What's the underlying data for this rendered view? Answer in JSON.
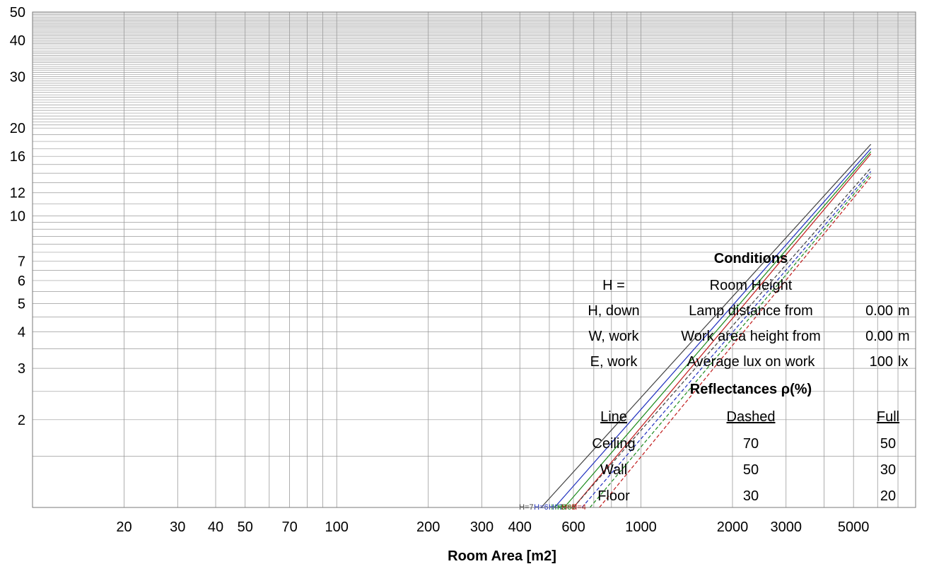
{
  "chart_data": {
    "type": "line",
    "title": "",
    "xlabel": "Room Area [m2]",
    "ylabel": "",
    "x_scale": "log",
    "y_scale": "log",
    "xlim": [
      10,
      8000
    ],
    "ylim": [
      1,
      50
    ],
    "x_ticks": [
      "20",
      "30",
      "40",
      "50",
      "70",
      "100",
      "200",
      "300",
      "400",
      "600",
      "1000",
      "2000",
      "3000",
      "5000"
    ],
    "y_ticks": [
      "2",
      "3",
      "4",
      "5",
      "6",
      "7",
      "10",
      "12",
      "16",
      "20",
      "30",
      "40",
      "50"
    ],
    "grid": true,
    "series": [
      {
        "name": "H=7",
        "style": "solid",
        "color": "#404040",
        "x": [
          470,
          5700
        ],
        "y": [
          1.0,
          17.6
        ]
      },
      {
        "name": "H=6",
        "style": "solid",
        "color": "#1f2fbf",
        "x": [
          520,
          5700
        ],
        "y": [
          1.0,
          17.0
        ]
      },
      {
        "name": "H=5",
        "style": "solid",
        "color": "#1a8a1a",
        "x": [
          560,
          5700
        ],
        "y": [
          1.0,
          16.6
        ]
      },
      {
        "name": "H=4",
        "style": "solid",
        "color": "#c01a1a",
        "x": [
          600,
          5700
        ],
        "y": [
          1.0,
          16.3
        ]
      },
      {
        "name": "H=7",
        "style": "dashed",
        "color": "#404040",
        "x": [
          600,
          5700
        ],
        "y": [
          1.0,
          14.6
        ]
      },
      {
        "name": "H=6",
        "style": "dashed",
        "color": "#1f2fbf",
        "x": [
          640,
          5700
        ],
        "y": [
          1.0,
          14.2
        ]
      },
      {
        "name": "H=5",
        "style": "dashed",
        "color": "#1a8a1a",
        "x": [
          680,
          5700
        ],
        "y": [
          1.0,
          13.9
        ]
      },
      {
        "name": "H=4",
        "style": "dashed",
        "color": "#c01a1a",
        "x": [
          730,
          5700
        ],
        "y": [
          1.0,
          13.6
        ]
      }
    ],
    "curve_labels": [
      {
        "text": "H=7",
        "color": "#404040",
        "x": 420
      },
      {
        "text": "H=6",
        "color": "#1f2fbf",
        "x": 470
      },
      {
        "text": "H=5",
        "color": "#1a8a1a",
        "x": 535
      },
      {
        "text": "H=4",
        "color": "#1a8a1a",
        "x": 575
      },
      {
        "text": "H=7",
        "color": "#1f2fbf",
        "x": 525
      },
      {
        "text": "H=6",
        "color": "#1a8a1a",
        "x": 560
      },
      {
        "text": "H=5",
        "color": "#c01a1a",
        "x": 580
      },
      {
        "text": "H=4",
        "color": "#c01a1a",
        "x": 625
      }
    ]
  },
  "conditions": {
    "heading": "Conditions",
    "rows": [
      {
        "symbol": "H =",
        "desc": "Room Height",
        "value": "",
        "unit": ""
      },
      {
        "symbol": "H, down",
        "desc": "Lamp distance from",
        "value": "0.00",
        "unit": "m"
      },
      {
        "symbol": "W, work",
        "desc": "Work area height from",
        "value": "0.00",
        "unit": "m"
      },
      {
        "symbol": "E, work",
        "desc": "Average lux on work",
        "value": "100",
        "unit": "lx"
      }
    ]
  },
  "reflectances": {
    "heading": "Reflectances ρ(%)",
    "col_line": "Line",
    "col_dashed": "Dashed",
    "col_full": "Full",
    "rows": [
      {
        "surface": "Ceiling",
        "dashed": "70",
        "full": "50"
      },
      {
        "surface": "Wall",
        "dashed": "50",
        "full": "30"
      },
      {
        "surface": "Floor",
        "dashed": "30",
        "full": "20"
      }
    ]
  }
}
